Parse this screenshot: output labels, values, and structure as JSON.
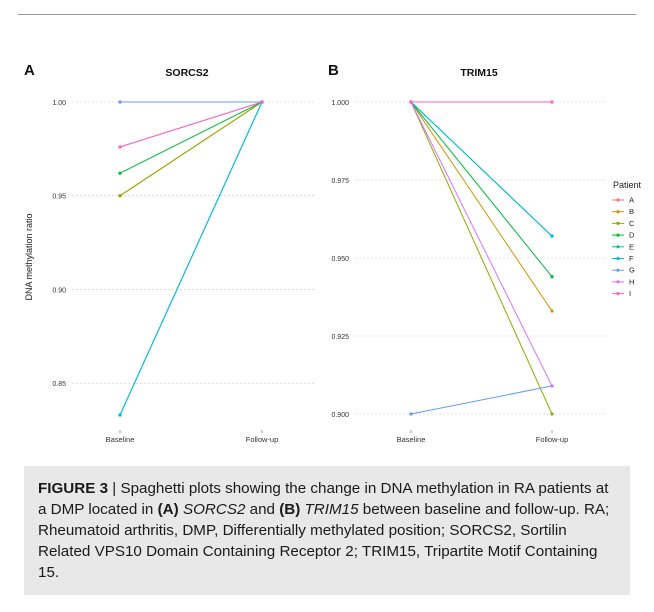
{
  "figure": {
    "ylabel": "DNA methylation ratio",
    "legend_title": "Patient",
    "caption": {
      "figure_label": "FIGURE 3",
      "sep": " | ",
      "text1": "Spaghetti plots showing the change in DNA methylation in RA patients at a DMP located in ",
      "ref_a": "(A)",
      "gene_a": "SORCS2",
      "text2": " and ",
      "ref_b": "(B)",
      "gene_b": "TRIM15",
      "text3": " between baseline and follow-up. RA; Rheumatoid arthritis, DMP, Differentially methylated position; SORCS2, Sortilin Related VPS10 Domain Containing Receptor 2; TRIM15, Tripartite Motif Containing 15."
    }
  },
  "chart_data": [
    {
      "type": "line",
      "panel_label": "A",
      "title": "SORCS2",
      "ylabel": "DNA methylation ratio",
      "categories": [
        "Baseline",
        "Follow-up"
      ],
      "ylim": [
        0.825,
        1.0
      ],
      "yticks": [
        "1.00",
        "0.95",
        "0.90",
        "0.85"
      ],
      "ytick_values": [
        1.0,
        0.95,
        0.9,
        0.85
      ],
      "grid": true,
      "series": [
        {
          "name": "A",
          "color": "#F8766D",
          "values": [
            1.0,
            1.0
          ]
        },
        {
          "name": "B",
          "color": "#D39200",
          "values": [
            0.95,
            1.0
          ]
        },
        {
          "name": "C",
          "color": "#93AA00",
          "values": [
            0.95,
            1.0
          ]
        },
        {
          "name": "D",
          "color": "#00BA38",
          "values": [
            0.962,
            1.0
          ]
        },
        {
          "name": "E",
          "color": "#00C19F",
          "values": [
            0.833,
            1.0
          ]
        },
        {
          "name": "F",
          "color": "#00B9E3",
          "values": [
            0.833,
            1.0
          ]
        },
        {
          "name": "G",
          "color": "#619CFF",
          "values": [
            1.0,
            1.0
          ]
        },
        {
          "name": "H",
          "color": "#DB72FB",
          "values": [
            0.976,
            1.0
          ]
        },
        {
          "name": "I",
          "color": "#FF61C3",
          "values": [
            0.976,
            1.0
          ]
        }
      ]
    },
    {
      "type": "line",
      "panel_label": "B",
      "title": "TRIM15",
      "categories": [
        "Baseline",
        "Follow-up"
      ],
      "ylim": [
        0.9,
        1.0
      ],
      "yticks": [
        "1.000",
        "0.975",
        "0.950",
        "0.925",
        "0.900"
      ],
      "ytick_values": [
        1.0,
        0.975,
        0.95,
        0.925,
        0.9
      ],
      "grid": true,
      "legend_position": "right",
      "series": [
        {
          "name": "A",
          "color": "#F8766D",
          "values": [
            1.0,
            1.0
          ]
        },
        {
          "name": "B",
          "color": "#D39200",
          "values": [
            1.0,
            0.933
          ]
        },
        {
          "name": "C",
          "color": "#93AA00",
          "values": [
            1.0,
            0.9
          ]
        },
        {
          "name": "D",
          "color": "#00BA38",
          "values": [
            1.0,
            0.944
          ]
        },
        {
          "name": "E",
          "color": "#00C19F",
          "values": [
            1.0,
            0.957
          ]
        },
        {
          "name": "F",
          "color": "#00B9E3",
          "values": [
            1.0,
            0.957
          ]
        },
        {
          "name": "G",
          "color": "#619CFF",
          "values": [
            0.9,
            0.909
          ]
        },
        {
          "name": "H",
          "color": "#DB72FB",
          "values": [
            1.0,
            0.909
          ]
        },
        {
          "name": "I",
          "color": "#FF61C3",
          "values": [
            1.0,
            1.0
          ]
        }
      ]
    }
  ]
}
